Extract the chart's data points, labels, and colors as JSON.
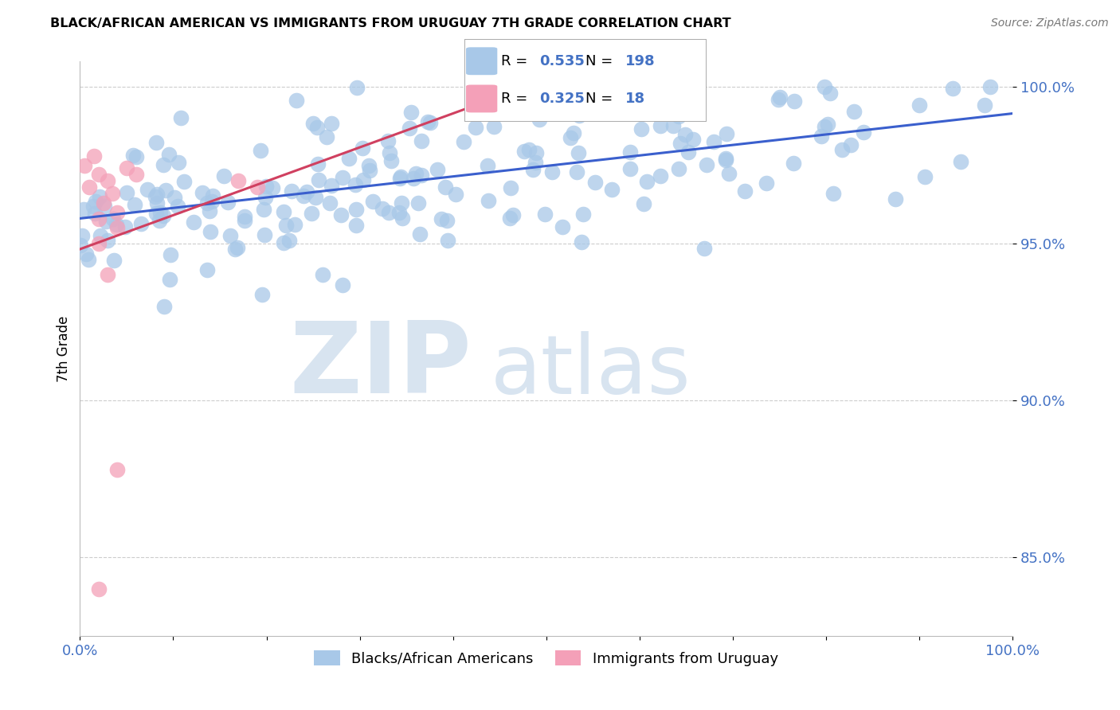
{
  "title": "BLACK/AFRICAN AMERICAN VS IMMIGRANTS FROM URUGUAY 7TH GRADE CORRELATION CHART",
  "source": "Source: ZipAtlas.com",
  "ylabel": "7th Grade",
  "xlim": [
    0.0,
    1.0
  ],
  "ylim": [
    0.825,
    1.008
  ],
  "yticks": [
    0.85,
    0.9,
    0.95,
    1.0
  ],
  "ytick_labels": [
    "85.0%",
    "90.0%",
    "95.0%",
    "100.0%"
  ],
  "xticks": [
    0.0,
    0.1,
    0.2,
    0.3,
    0.4,
    0.5,
    0.6,
    0.7,
    0.8,
    0.9,
    1.0
  ],
  "xtick_labels": [
    "0.0%",
    "",
    "",
    "",
    "",
    "",
    "",
    "",
    "",
    "",
    "100.0%"
  ],
  "blue_color": "#a8c8e8",
  "pink_color": "#f4a0b8",
  "blue_line_color": "#3a5fcd",
  "pink_line_color": "#d04060",
  "tick_color": "#4472c4",
  "legend_R1": "0.535",
  "legend_N1": "198",
  "legend_R2": "0.325",
  "legend_N2": "18",
  "legend_label1": "Blacks/African Americans",
  "legend_label2": "Immigrants from Uruguay",
  "watermark_zip": "ZIP",
  "watermark_atlas": "atlas",
  "watermark_color": "#d8e4f0",
  "grid_color": "#cccccc",
  "blue_seed": 12,
  "pink_seed": 7
}
